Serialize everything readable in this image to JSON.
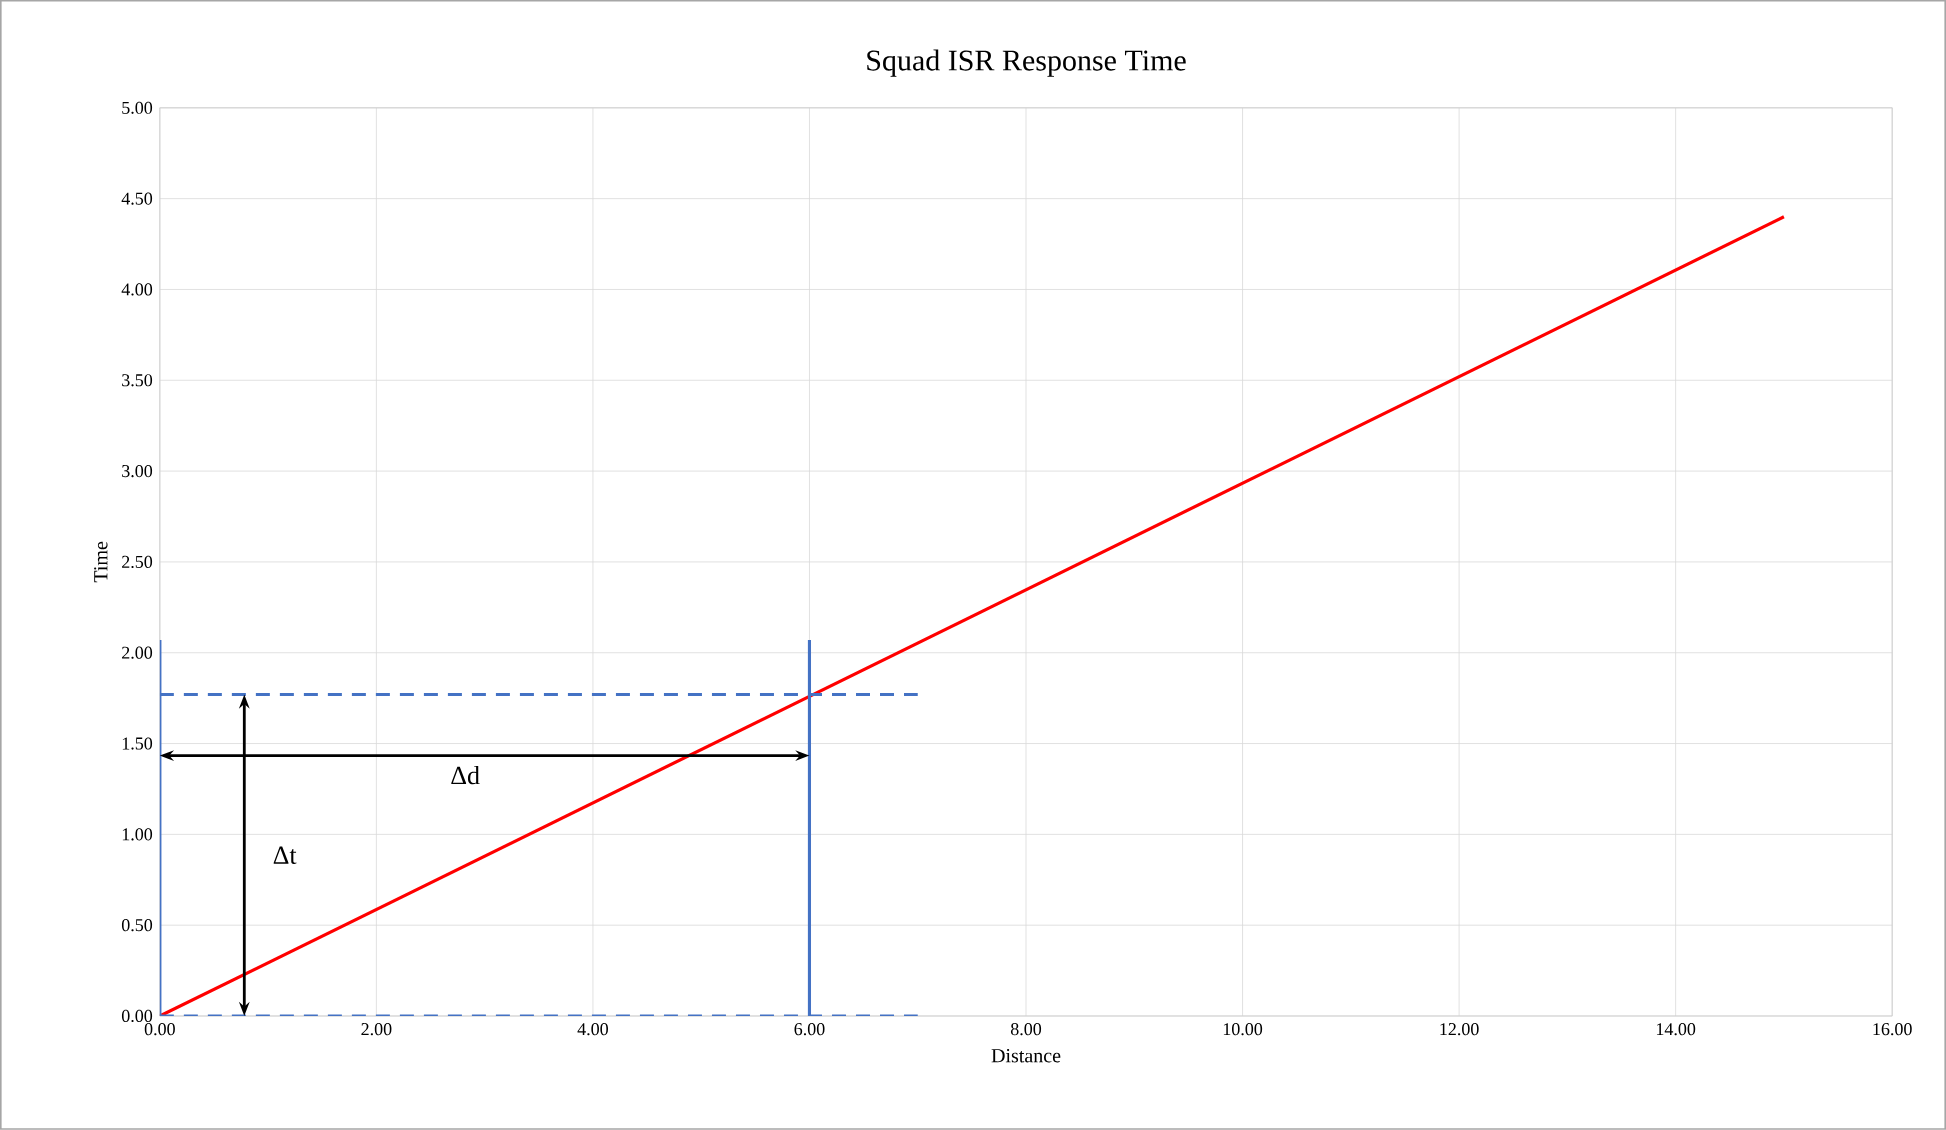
{
  "chart_data": {
    "type": "line",
    "title": "Squad ISR Response Time",
    "xlabel": "Distance",
    "ylabel": "Time",
    "xlim": [
      0,
      16
    ],
    "ylim": [
      0,
      5
    ],
    "xticks": [
      {
        "value": 0,
        "label": "0.00"
      },
      {
        "value": 2,
        "label": "2.00"
      },
      {
        "value": 4,
        "label": "4.00"
      },
      {
        "value": 6,
        "label": "6.00"
      },
      {
        "value": 8,
        "label": "8.00"
      },
      {
        "value": 10,
        "label": "10.00"
      },
      {
        "value": 12,
        "label": "12.00"
      },
      {
        "value": 14,
        "label": "14.00"
      },
      {
        "value": 16,
        "label": "16.00"
      }
    ],
    "yticks": [
      {
        "value": 0,
        "label": "0.00"
      },
      {
        "value": 0.5,
        "label": "0.50"
      },
      {
        "value": 1,
        "label": "1.00"
      },
      {
        "value": 1.5,
        "label": "1.50"
      },
      {
        "value": 2,
        "label": "2.00"
      },
      {
        "value": 2.5,
        "label": "2.50"
      },
      {
        "value": 3,
        "label": "3.00"
      },
      {
        "value": 3.5,
        "label": "3.50"
      },
      {
        "value": 4,
        "label": "4.00"
      },
      {
        "value": 4.5,
        "label": "4.50"
      },
      {
        "value": 5,
        "label": "5.00"
      }
    ],
    "grid": true,
    "marker": "none",
    "series": [
      {
        "color": "#ff0000",
        "line_style": "solid",
        "x": [
          0,
          15
        ],
        "values": [
          0,
          4.4
        ]
      },
      {
        "color": "#4472c4",
        "line_style": "solid",
        "x": [
          0,
          0
        ],
        "values": [
          0,
          2.07
        ]
      },
      {
        "color": "#4472c4",
        "line_style": "solid",
        "x": [
          6,
          6
        ],
        "values": [
          0,
          2.07
        ]
      },
      {
        "color": "#4472c4",
        "line_style": "dashed",
        "x": [
          0,
          7
        ],
        "values": [
          0,
          0
        ]
      },
      {
        "color": "#4472c4",
        "line_style": "dashed",
        "x": [
          0,
          7
        ],
        "values": [
          1.77,
          1.77
        ]
      }
    ],
    "annotations": [
      "Δd",
      "Δt"
    ]
  }
}
